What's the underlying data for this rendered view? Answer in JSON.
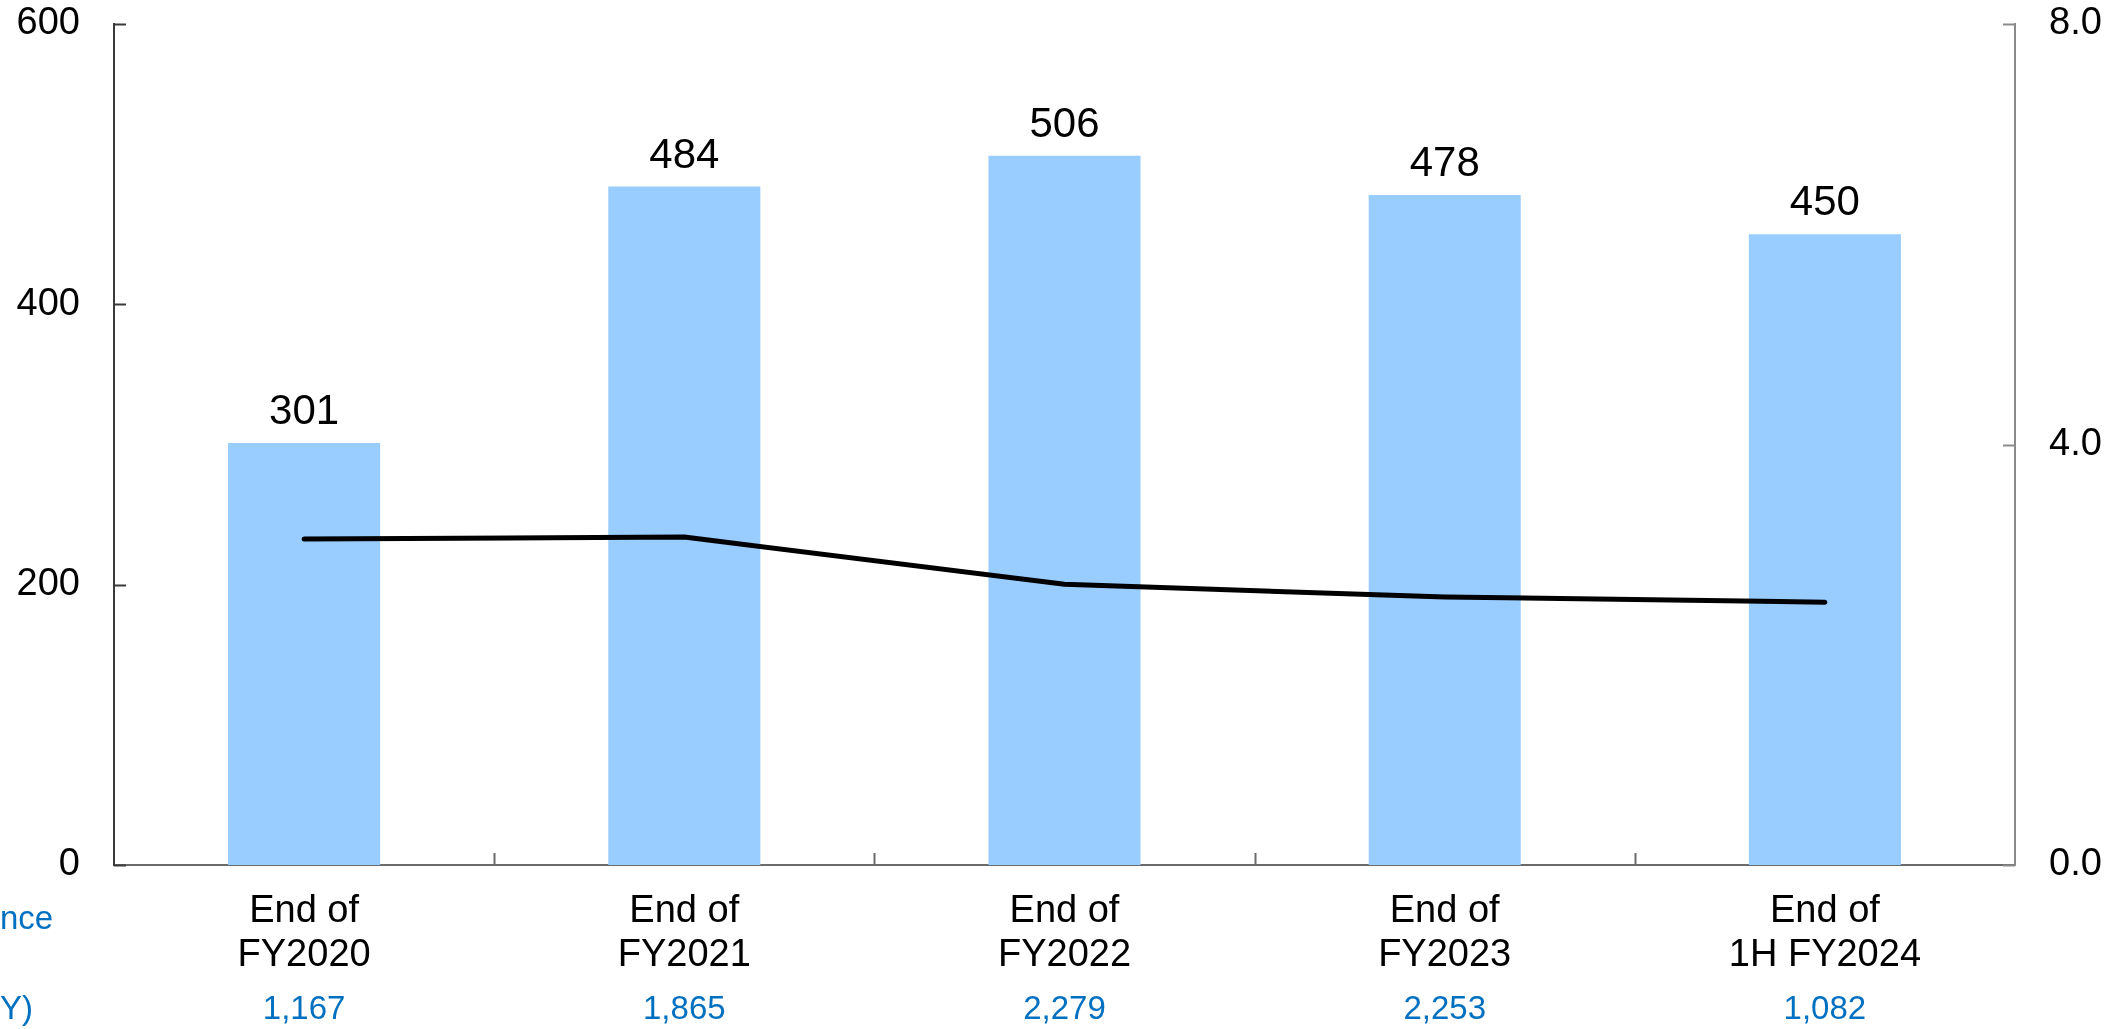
{
  "chart_data": {
    "type": "bar",
    "categories": [
      "End of\nFY2020",
      "End of\nFY2021",
      "End of\nFY2022",
      "End of\nFY2023",
      "End of\n1H FY2024"
    ],
    "series": [
      {
        "color": "#99ccff",
        "values": [
          301,
          484,
          506,
          478,
          450
        ],
        "value_labels": [
          "301",
          "484",
          "506",
          "478",
          "450"
        ]
      },
      {
        "type": "line",
        "axis": "y2",
        "color": "#000000",
        "values": [
          3.1,
          3.12,
          2.67,
          2.55,
          2.5
        ]
      }
    ],
    "ylim": [
      0,
      600
    ],
    "yticks": [
      0,
      200,
      400,
      600
    ],
    "y2lim": [
      0,
      8
    ],
    "y2ticks": [
      {
        "value": 0,
        "label": "0.0"
      },
      {
        "value": 4,
        "label": "4.0"
      },
      {
        "value": 8,
        "label": "8.0"
      }
    ],
    "annotations": [
      "nce",
      "Y)",
      "1,167",
      "1,865",
      "2,279",
      "2,253",
      "1,082"
    ],
    "legend": false,
    "grid": false,
    "marker": "none",
    "line_style": "solid"
  }
}
